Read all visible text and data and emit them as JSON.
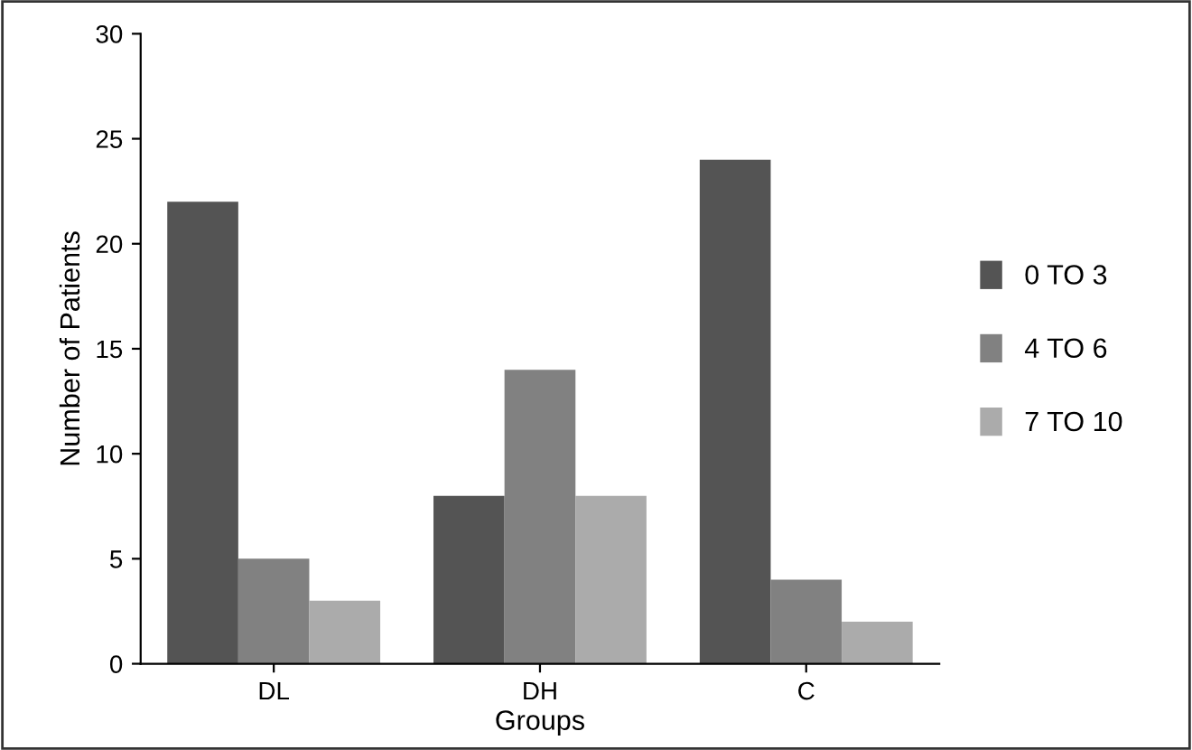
{
  "chart_data": {
    "type": "bar",
    "xlabel": "Groups",
    "ylabel": "Number of Patients",
    "categories": [
      "DL",
      "DH",
      "C"
    ],
    "series": [
      {
        "name": "0 TO 3",
        "color": "#545454",
        "values": [
          22,
          8,
          24
        ]
      },
      {
        "name": "4 TO 6",
        "color": "#818181",
        "values": [
          5,
          14,
          4
        ]
      },
      {
        "name": "7 TO 10",
        "color": "#ababab",
        "values": [
          3,
          8,
          2
        ]
      }
    ],
    "ylim": [
      0,
      30
    ],
    "yticks": [
      0,
      5,
      10,
      15,
      20,
      25,
      30
    ],
    "grid": false,
    "legend": "right"
  }
}
